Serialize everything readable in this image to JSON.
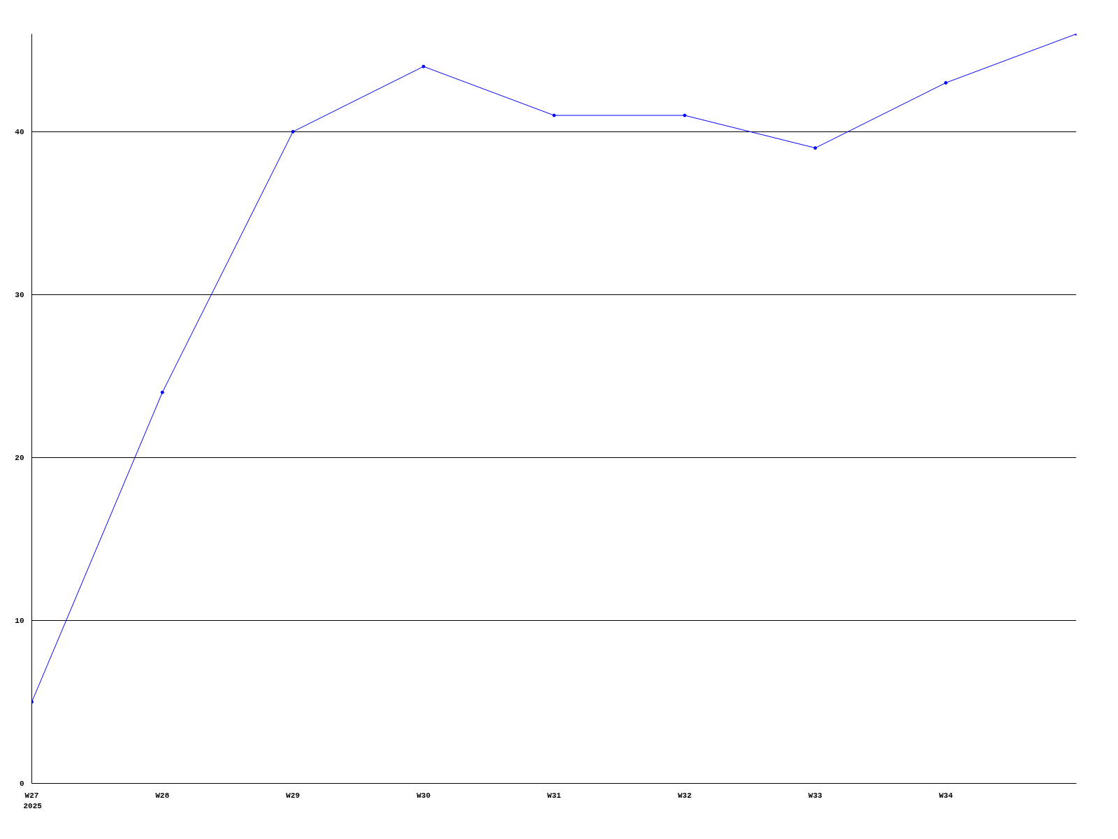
{
  "chart_data": {
    "type": "line",
    "categories": [
      "W27",
      "W28",
      "W29",
      "W30",
      "W31",
      "W32",
      "W33",
      "W34",
      null
    ],
    "series": [
      {
        "color": "#0000ff",
        "values": [
          5,
          24,
          40,
          44,
          41,
          41,
          39,
          43,
          46
        ]
      }
    ],
    "ylim": [
      0,
      46
    ],
    "yticks": [
      0,
      10,
      20,
      30,
      40
    ],
    "grid": "y",
    "marker": "circle",
    "line_style": "solid",
    "annotations": [
      "2025"
    ]
  }
}
